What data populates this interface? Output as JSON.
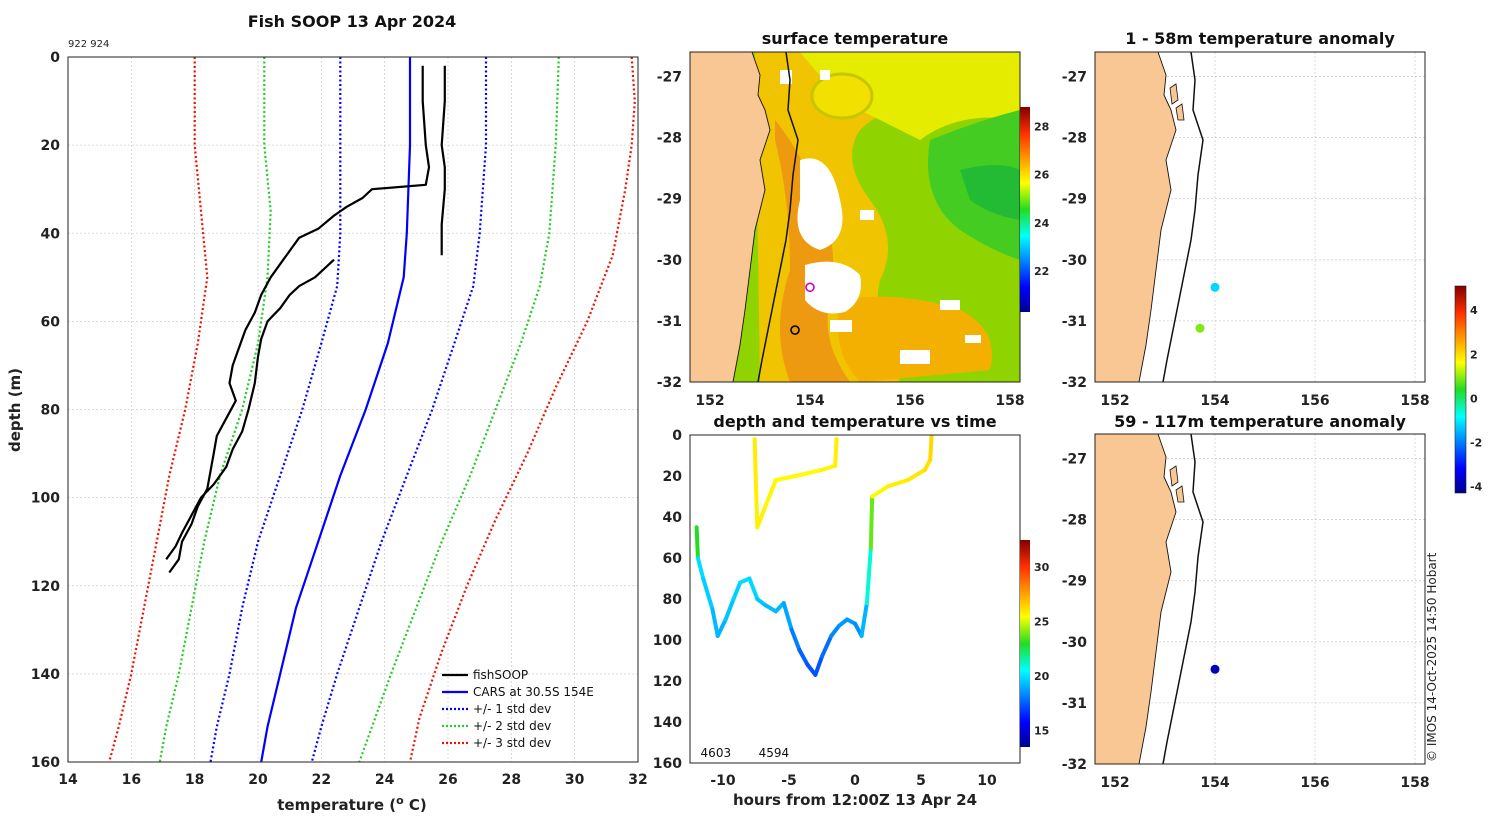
{
  "chart_data": [
    {
      "type": "line",
      "id": "profile",
      "title": "Fish SOOP 13 Apr 2024",
      "corner_label": "922 924",
      "xlabel": "temperature (",
      "xlabel_sup": "o",
      "xlabel_tail": " C)",
      "ylabel": "depth (m)",
      "xlim": [
        14,
        32
      ],
      "ylim": [
        0,
        160
      ],
      "xticks": [
        14,
        16,
        18,
        20,
        22,
        24,
        26,
        28,
        30,
        32
      ],
      "yticks": [
        0,
        20,
        40,
        60,
        80,
        100,
        120,
        140,
        160
      ],
      "legend": [
        "fishSOOP",
        "CARS at 30.5S 154E",
        "+/- 1 std dev",
        "+/- 2 std dev",
        "+/- 3 std dev"
      ],
      "series": [
        {
          "name": "CARS",
          "color": "#0000ff",
          "dash": false,
          "points": [
            [
              24.8,
              0
            ],
            [
              24.8,
              20
            ],
            [
              24.7,
              40
            ],
            [
              24.6,
              50
            ],
            [
              24.1,
              65
            ],
            [
              23.4,
              80
            ],
            [
              22.6,
              95
            ],
            [
              21.9,
              110
            ],
            [
              21.2,
              125
            ],
            [
              20.7,
              140
            ],
            [
              20.3,
              152
            ],
            [
              20.1,
              160
            ]
          ]
        },
        {
          "name": "-1std",
          "color": "#0000ff",
          "dash": true,
          "points": [
            [
              22.6,
              0
            ],
            [
              22.6,
              20
            ],
            [
              22.6,
              40
            ],
            [
              22.5,
              52
            ],
            [
              22.0,
              65
            ],
            [
              21.4,
              80
            ],
            [
              20.7,
              95
            ],
            [
              20.0,
              110
            ],
            [
              19.5,
              125
            ],
            [
              19.1,
              140
            ],
            [
              18.7,
              152
            ],
            [
              18.5,
              160
            ]
          ]
        },
        {
          "name": "+1std",
          "color": "#0000ff",
          "dash": true,
          "points": [
            [
              27.2,
              0
            ],
            [
              27.2,
              20
            ],
            [
              27.0,
              40
            ],
            [
              26.8,
              52
            ],
            [
              26.2,
              65
            ],
            [
              25.5,
              80
            ],
            [
              24.7,
              95
            ],
            [
              23.9,
              110
            ],
            [
              23.2,
              125
            ],
            [
              22.5,
              140
            ],
            [
              22.0,
              152
            ],
            [
              21.7,
              160
            ]
          ]
        },
        {
          "name": "-2std",
          "color": "#22cc22",
          "dash": true,
          "points": [
            [
              20.2,
              0
            ],
            [
              20.2,
              20
            ],
            [
              20.4,
              35
            ],
            [
              20.3,
              50
            ],
            [
              20.0,
              65
            ],
            [
              19.5,
              80
            ],
            [
              18.8,
              95
            ],
            [
              18.3,
              110
            ],
            [
              17.9,
              125
            ],
            [
              17.5,
              140
            ],
            [
              17.1,
              152
            ],
            [
              16.9,
              160
            ]
          ]
        },
        {
          "name": "+2std",
          "color": "#22cc22",
          "dash": true,
          "points": [
            [
              29.5,
              0
            ],
            [
              29.4,
              20
            ],
            [
              29.2,
              40
            ],
            [
              28.9,
              52
            ],
            [
              28.3,
              65
            ],
            [
              27.5,
              80
            ],
            [
              26.7,
              95
            ],
            [
              25.8,
              110
            ],
            [
              25.0,
              125
            ],
            [
              24.2,
              140
            ],
            [
              23.6,
              152
            ],
            [
              23.2,
              160
            ]
          ]
        },
        {
          "name": "-3std",
          "color": "#ee1100",
          "dash": true,
          "points": [
            [
              18.0,
              0
            ],
            [
              18.0,
              20
            ],
            [
              18.2,
              35
            ],
            [
              18.4,
              50
            ],
            [
              18.1,
              65
            ],
            [
              17.7,
              80
            ],
            [
              17.2,
              95
            ],
            [
              16.8,
              110
            ],
            [
              16.4,
              125
            ],
            [
              16.0,
              140
            ],
            [
              15.6,
              152
            ],
            [
              15.3,
              160
            ]
          ]
        },
        {
          "name": "+3std",
          "color": "#ee1100",
          "dash": true,
          "points": [
            [
              31.8,
              0
            ],
            [
              31.9,
              10
            ],
            [
              31.8,
              20
            ],
            [
              31.6,
              30
            ],
            [
              31.2,
              45
            ],
            [
              30.4,
              60
            ],
            [
              29.4,
              75
            ],
            [
              28.5,
              90
            ],
            [
              27.5,
              105
            ],
            [
              26.6,
              120
            ],
            [
              25.8,
              135
            ],
            [
              25.1,
              150
            ],
            [
              24.8,
              160
            ]
          ]
        },
        {
          "name": "fishSOOP-a",
          "color": "#000000",
          "dash": false,
          "points": [
            [
              25.9,
              2
            ],
            [
              25.9,
              10
            ],
            [
              25.8,
              20
            ],
            [
              25.9,
              25
            ],
            [
              25.9,
              30
            ],
            [
              25.8,
              38
            ],
            [
              25.8,
              45
            ]
          ]
        },
        {
          "name": "fishSOOP-b",
          "color": "#000000",
          "dash": false,
          "points": [
            [
              25.2,
              2
            ],
            [
              25.2,
              10
            ],
            [
              25.3,
              20
            ],
            [
              25.4,
              25
            ],
            [
              25.3,
              29
            ],
            [
              23.6,
              30
            ],
            [
              23.3,
              32
            ],
            [
              22.8,
              34
            ],
            [
              22.4,
              36
            ],
            [
              21.9,
              39
            ],
            [
              21.3,
              41
            ],
            [
              20.8,
              46
            ],
            [
              20.4,
              50
            ],
            [
              20.1,
              54
            ],
            [
              19.9,
              58
            ],
            [
              19.6,
              62
            ],
            [
              19.4,
              66
            ],
            [
              19.2,
              70
            ],
            [
              19.1,
              74
            ],
            [
              19.3,
              78
            ],
            [
              19.0,
              82
            ],
            [
              18.7,
              86
            ],
            [
              18.6,
              90
            ],
            [
              18.5,
              94
            ],
            [
              18.4,
              98
            ],
            [
              18.1,
              102
            ],
            [
              17.9,
              106
            ],
            [
              17.6,
              110
            ],
            [
              17.5,
              114
            ],
            [
              17.2,
              117
            ]
          ]
        },
        {
          "name": "fishSOOP-c",
          "color": "#000000",
          "dash": false,
          "points": [
            [
              17.1,
              114
            ],
            [
              17.4,
              111
            ],
            [
              17.6,
              108
            ],
            [
              17.9,
              104
            ],
            [
              18.2,
              100
            ],
            [
              18.6,
              97
            ],
            [
              19.0,
              93
            ],
            [
              19.2,
              89
            ],
            [
              19.5,
              85
            ],
            [
              19.7,
              80
            ],
            [
              19.9,
              74
            ],
            [
              20.0,
              68
            ],
            [
              20.1,
              64
            ],
            [
              20.3,
              60
            ],
            [
              20.7,
              57
            ],
            [
              21.0,
              54
            ],
            [
              21.3,
              52
            ],
            [
              21.8,
              50
            ],
            [
              22.4,
              46
            ]
          ]
        }
      ]
    },
    {
      "type": "heatmap",
      "id": "sst",
      "title": "surface temperature",
      "xlim": [
        151.6,
        158.2
      ],
      "ylim": [
        -32,
        -26.6
      ],
      "xticks": [
        152,
        154,
        156,
        158
      ],
      "yticks": [
        -27,
        -28,
        -29,
        -30,
        -31,
        -32
      ],
      "colorbar_ticks": [
        22,
        24,
        26,
        28
      ],
      "colorbar_range": [
        20.3,
        28.8
      ],
      "markers": [
        {
          "lon": 154.0,
          "lat": -30.45,
          "color": "#cc00cc"
        },
        {
          "lon": 153.7,
          "lat": -31.15,
          "color": "#000000"
        }
      ]
    },
    {
      "type": "scatter",
      "id": "anom1",
      "title": "1 - 58m temperature anomaly",
      "xlim": [
        151.6,
        158.2
      ],
      "ylim": [
        -32,
        -26.6
      ],
      "xticks": [
        152,
        154,
        156,
        158
      ],
      "yticks": [
        -27,
        -28,
        -29,
        -30,
        -31,
        -32
      ],
      "points": [
        {
          "lon": 154.0,
          "lat": -30.45,
          "anomaly": -1.2
        },
        {
          "lon": 153.7,
          "lat": -31.12,
          "anomaly": 0.9
        }
      ]
    },
    {
      "type": "scatter",
      "id": "anom2",
      "title": "59 - 117m temperature anomaly",
      "xlim": [
        151.6,
        158.2
      ],
      "ylim": [
        -32,
        -26.6
      ],
      "xticks": [
        152,
        154,
        156,
        158
      ],
      "yticks": [
        -27,
        -28,
        -29,
        -30,
        -31,
        -32
      ],
      "points": [
        {
          "lon": 154.0,
          "lat": -30.45,
          "anomaly": -3.9
        }
      ]
    },
    {
      "type": "line",
      "id": "timeseries",
      "title": "depth and temperature vs time",
      "xlabel": "hours from 12:00Z 13 Apr 24",
      "xlim": [
        -12.5,
        12.5
      ],
      "ylim": [
        0,
        160
      ],
      "xticks": [
        -10,
        -5,
        0,
        5,
        10
      ],
      "yticks": [
        0,
        20,
        40,
        60,
        80,
        100,
        120,
        140,
        160
      ],
      "colorbar_ticks": [
        15,
        20,
        25,
        30
      ],
      "colorbar_range": [
        13.5,
        32.5
      ],
      "labels": [
        {
          "text": "4603",
          "hour": -11.7,
          "depth": 157
        },
        {
          "text": "4594",
          "hour": -7.3,
          "depth": 157
        }
      ],
      "series": [
        {
          "name": "drop1",
          "points": [
            [
              -12.0,
              45,
              26.0
            ],
            [
              -11.9,
              60,
              20.0
            ],
            [
              -11.5,
              70,
              19.8
            ],
            [
              -10.8,
              85,
              19.5
            ],
            [
              -10.4,
              98,
              19.0
            ],
            [
              -9.8,
              90,
              19.3
            ],
            [
              -9.2,
              80,
              19.6
            ],
            [
              -8.7,
              72,
              19.8
            ],
            [
              -8.0,
              70,
              20.0
            ],
            [
              -7.4,
              80,
              19.6
            ],
            [
              -6.8,
              83,
              19.4
            ],
            [
              -6.0,
              86,
              19.2
            ],
            [
              -5.4,
              82,
              19.3
            ],
            [
              -4.8,
              95,
              18.5
            ],
            [
              -4.2,
              105,
              17.8
            ],
            [
              -3.6,
              112,
              17.4
            ],
            [
              -3.0,
              117,
              17.2
            ],
            [
              -2.5,
              108,
              17.5
            ],
            [
              -1.8,
              98,
              18.2
            ],
            [
              -1.2,
              93,
              18.5
            ],
            [
              -0.6,
              90,
              18.7
            ],
            [
              0.0,
              92,
              18.6
            ],
            [
              0.5,
              98,
              18.3
            ],
            [
              0.9,
              82,
              20.0
            ],
            [
              1.2,
              55,
              22.0
            ],
            [
              1.3,
              30,
              25.5
            ]
          ]
        },
        {
          "name": "drop2",
          "points": [
            [
              -7.6,
              2,
              25.9
            ],
            [
              -7.5,
              25,
              25.8
            ],
            [
              -7.4,
              45,
              25.8
            ],
            [
              -6.8,
              35,
              25.7
            ],
            [
              -6.0,
              22,
              25.6
            ],
            [
              -4.5,
              20,
              25.5
            ],
            [
              -2.5,
              17,
              25.6
            ],
            [
              -1.5,
              15,
              25.7
            ],
            [
              -1.4,
              2,
              25.9
            ]
          ]
        },
        {
          "name": "drop3",
          "points": [
            [
              1.3,
              30,
              25.5
            ],
            [
              2.5,
              25,
              25.8
            ],
            [
              4.0,
              22,
              25.9
            ],
            [
              5.3,
              17,
              26.0
            ],
            [
              5.7,
              12,
              26.2
            ],
            [
              5.8,
              0,
              26.4
            ]
          ]
        }
      ]
    }
  ],
  "anomaly_colorbar": {
    "ticks": [
      -4,
      -2,
      0,
      2,
      4
    ],
    "range": [
      -4.3,
      5.1
    ]
  },
  "footer": {
    "credit": "© IMOS 14-Oct-2025 14:50 Hobart"
  }
}
